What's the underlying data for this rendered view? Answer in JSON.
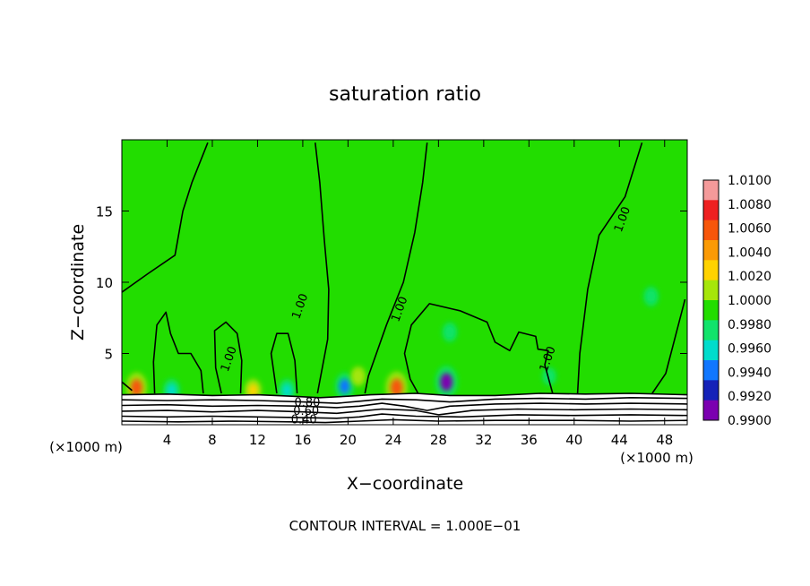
{
  "chart_data": {
    "type": "heatmap",
    "title": "saturation ratio",
    "xlabel": "X−coordinate",
    "ylabel": "Z−coordinate",
    "x_unit_left": "(×1000 m)",
    "x_unit_right": "(×1000 m)",
    "footer": "CONTOUR INTERVAL = 1.000E−01",
    "xlim": [
      0,
      50
    ],
    "ylim": [
      0,
      20
    ],
    "x_ticks": [
      4,
      8,
      12,
      16,
      20,
      24,
      28,
      32,
      36,
      40,
      44,
      48
    ],
    "x_tick_labels": [
      "4",
      "8",
      "12",
      "16",
      "20",
      "24",
      "28",
      "32",
      "36",
      "40",
      "44",
      "48"
    ],
    "y_ticks": [
      5,
      10,
      15
    ],
    "y_tick_labels": [
      "5",
      "10",
      "15"
    ],
    "colorbar": {
      "labels": [
        "1.0100",
        "1.0080",
        "1.0060",
        "1.0040",
        "1.0020",
        "1.0000",
        "0.9980",
        "0.9960",
        "0.9940",
        "0.9920",
        "0.9900"
      ],
      "colors": [
        "#f49a9a",
        "#ee2020",
        "#f7560a",
        "#fb9a05",
        "#ffd200",
        "#a6e60a",
        "#22dd00",
        "#11e36b",
        "#00dccc",
        "#1077ff",
        "#1522b8",
        "#7b00b0"
      ]
    },
    "background_value": "1.0000",
    "contour_labels": [
      {
        "text": "1.00",
        "x": 15.8,
        "z": 8.3
      },
      {
        "text": "1.00",
        "x": 24.6,
        "z": 8.1
      },
      {
        "text": "1.00",
        "x": 9.5,
        "z": 4.6
      },
      {
        "text": "1.00",
        "x": 37.7,
        "z": 4.6
      },
      {
        "text": "1.00",
        "x": 44.3,
        "z": 14.4
      },
      {
        "text": "0.80",
        "x": 16.4,
        "z": 1.5
      },
      {
        "text": "0.60",
        "x": 16.3,
        "z": 0.9
      },
      {
        "text": "0.40",
        "x": 16.1,
        "z": 0.3
      }
    ],
    "anomalies": [
      {
        "x": 1.3,
        "z": 2.6,
        "value": 1.008
      },
      {
        "x": 4.4,
        "z": 2.4,
        "value": 0.996
      },
      {
        "x": 11.6,
        "z": 2.4,
        "value": 1.004
      },
      {
        "x": 14.6,
        "z": 2.4,
        "value": 0.996
      },
      {
        "x": 19.7,
        "z": 2.7,
        "value": 0.994
      },
      {
        "x": 20.9,
        "z": 3.4,
        "value": 1.002
      },
      {
        "x": 24.3,
        "z": 2.6,
        "value": 1.009
      },
      {
        "x": 28.7,
        "z": 3.0,
        "value": 0.991
      },
      {
        "x": 29.0,
        "z": 6.5,
        "value": 0.998
      },
      {
        "x": 37.8,
        "z": 3.4,
        "value": 0.999
      },
      {
        "x": 46.8,
        "z": 9.0,
        "value": 0.998
      }
    ],
    "contours_1_00": [
      [
        [
          0,
          9.3
        ],
        [
          2.3,
          10.6
        ],
        [
          4.7,
          11.9
        ],
        [
          5.4,
          15.0
        ],
        [
          6.2,
          17.0
        ],
        [
          7.6,
          19.8
        ]
      ],
      [
        [
          17.1,
          19.8
        ],
        [
          17.5,
          17.0
        ],
        [
          17.9,
          13.0
        ],
        [
          18.3,
          9.5
        ],
        [
          18.2,
          6.0
        ],
        [
          17.3,
          2.2
        ]
      ],
      [
        [
          27.0,
          19.8
        ],
        [
          26.6,
          17.0
        ],
        [
          25.9,
          13.5
        ],
        [
          24.9,
          10.0
        ],
        [
          23.4,
          7.0
        ],
        [
          21.8,
          3.4
        ],
        [
          21.5,
          2.2
        ]
      ],
      [
        [
          38.1,
          2.2
        ],
        [
          37.4,
          4.2
        ],
        [
          37.7,
          5.2
        ],
        [
          36.8,
          5.3
        ],
        [
          36.6,
          6.2
        ],
        [
          35.1,
          6.5
        ],
        [
          34.3,
          5.2
        ],
        [
          33.0,
          5.8
        ],
        [
          32.3,
          7.2
        ],
        [
          29.9,
          8.0
        ],
        [
          27.2,
          8.5
        ],
        [
          25.6,
          7.0
        ],
        [
          25.0,
          5.0
        ],
        [
          25.5,
          3.2
        ],
        [
          26.2,
          2.2
        ]
      ],
      [
        [
          40.3,
          2.2
        ],
        [
          40.5,
          5.0
        ],
        [
          41.2,
          9.5
        ],
        [
          42.2,
          13.3
        ],
        [
          44.5,
          16.0
        ],
        [
          46.0,
          19.8
        ]
      ],
      [
        [
          46.9,
          2.2
        ],
        [
          48.1,
          3.6
        ],
        [
          49.8,
          8.8
        ]
      ],
      [
        [
          2.9,
          2.2
        ],
        [
          2.8,
          4.4
        ],
        [
          3.1,
          7.0
        ],
        [
          3.9,
          7.9
        ],
        [
          4.3,
          6.4
        ],
        [
          5.0,
          5.0
        ],
        [
          6.1,
          5.0
        ],
        [
          7.0,
          3.8
        ],
        [
          7.2,
          2.2
        ]
      ],
      [
        [
          8.8,
          2.2
        ],
        [
          8.3,
          4.0
        ],
        [
          8.2,
          6.6
        ],
        [
          9.2,
          7.2
        ],
        [
          10.2,
          6.4
        ],
        [
          10.6,
          4.5
        ],
        [
          10.5,
          2.2
        ]
      ],
      [
        [
          13.7,
          2.2
        ],
        [
          13.2,
          5.0
        ],
        [
          13.7,
          6.4
        ],
        [
          14.7,
          6.4
        ],
        [
          15.3,
          4.5
        ],
        [
          15.5,
          2.2
        ]
      ],
      [
        [
          0,
          3.0
        ],
        [
          0.9,
          2.4
        ]
      ]
    ],
    "contours_lower": [
      [
        [
          0,
          2.1
        ],
        [
          4,
          2.15
        ],
        [
          8,
          2.05
        ],
        [
          12,
          2.1
        ],
        [
          15,
          2.0
        ],
        [
          17.5,
          1.9
        ],
        [
          20,
          2.0
        ],
        [
          22,
          2.1
        ],
        [
          26,
          2.2
        ],
        [
          29,
          2.05
        ],
        [
          33,
          2.05
        ],
        [
          37,
          2.2
        ],
        [
          41,
          2.15
        ],
        [
          45,
          2.2
        ],
        [
          50,
          2.1
        ]
      ],
      [
        [
          0,
          1.75
        ],
        [
          4,
          1.7
        ],
        [
          8,
          1.75
        ],
        [
          12,
          1.7
        ],
        [
          16,
          1.6
        ],
        [
          19,
          1.5
        ],
        [
          21,
          1.65
        ],
        [
          23,
          1.8
        ],
        [
          26,
          1.75
        ],
        [
          29,
          1.6
        ],
        [
          33,
          1.8
        ],
        [
          37,
          1.85
        ],
        [
          41,
          1.8
        ],
        [
          45,
          1.9
        ],
        [
          50,
          1.85
        ]
      ],
      [
        [
          0,
          1.35
        ],
        [
          4,
          1.4
        ],
        [
          8,
          1.3
        ],
        [
          12,
          1.35
        ],
        [
          16,
          1.3
        ],
        [
          19,
          1.2
        ],
        [
          21,
          1.3
        ],
        [
          23,
          1.5
        ],
        [
          25,
          1.3
        ],
        [
          27,
          1.0
        ],
        [
          29,
          1.3
        ],
        [
          33,
          1.45
        ],
        [
          37,
          1.5
        ],
        [
          41,
          1.45
        ],
        [
          45,
          1.5
        ],
        [
          50,
          1.45
        ]
      ],
      [
        [
          0,
          0.95
        ],
        [
          4,
          1.0
        ],
        [
          8,
          0.9
        ],
        [
          12,
          1.0
        ],
        [
          16,
          0.9
        ],
        [
          19,
          0.8
        ],
        [
          21,
          0.95
        ],
        [
          23,
          1.1
        ],
        [
          26,
          1.0
        ],
        [
          28,
          0.7
        ],
        [
          31,
          1.0
        ],
        [
          35,
          1.1
        ],
        [
          40,
          1.05
        ],
        [
          45,
          1.1
        ],
        [
          50,
          1.05
        ]
      ],
      [
        [
          0,
          0.6
        ],
        [
          4,
          0.55
        ],
        [
          8,
          0.6
        ],
        [
          12,
          0.55
        ],
        [
          16,
          0.5
        ],
        [
          19,
          0.45
        ],
        [
          21,
          0.55
        ],
        [
          23,
          0.75
        ],
        [
          26,
          0.6
        ],
        [
          30,
          0.55
        ],
        [
          35,
          0.7
        ],
        [
          40,
          0.65
        ],
        [
          45,
          0.7
        ],
        [
          50,
          0.65
        ]
      ],
      [
        [
          0,
          0.25
        ],
        [
          5,
          0.2
        ],
        [
          10,
          0.25
        ],
        [
          15,
          0.2
        ],
        [
          18,
          0.15
        ],
        [
          21,
          0.25
        ],
        [
          24,
          0.35
        ],
        [
          28,
          0.25
        ],
        [
          33,
          0.3
        ],
        [
          40,
          0.3
        ],
        [
          45,
          0.25
        ],
        [
          50,
          0.3
        ]
      ]
    ]
  }
}
